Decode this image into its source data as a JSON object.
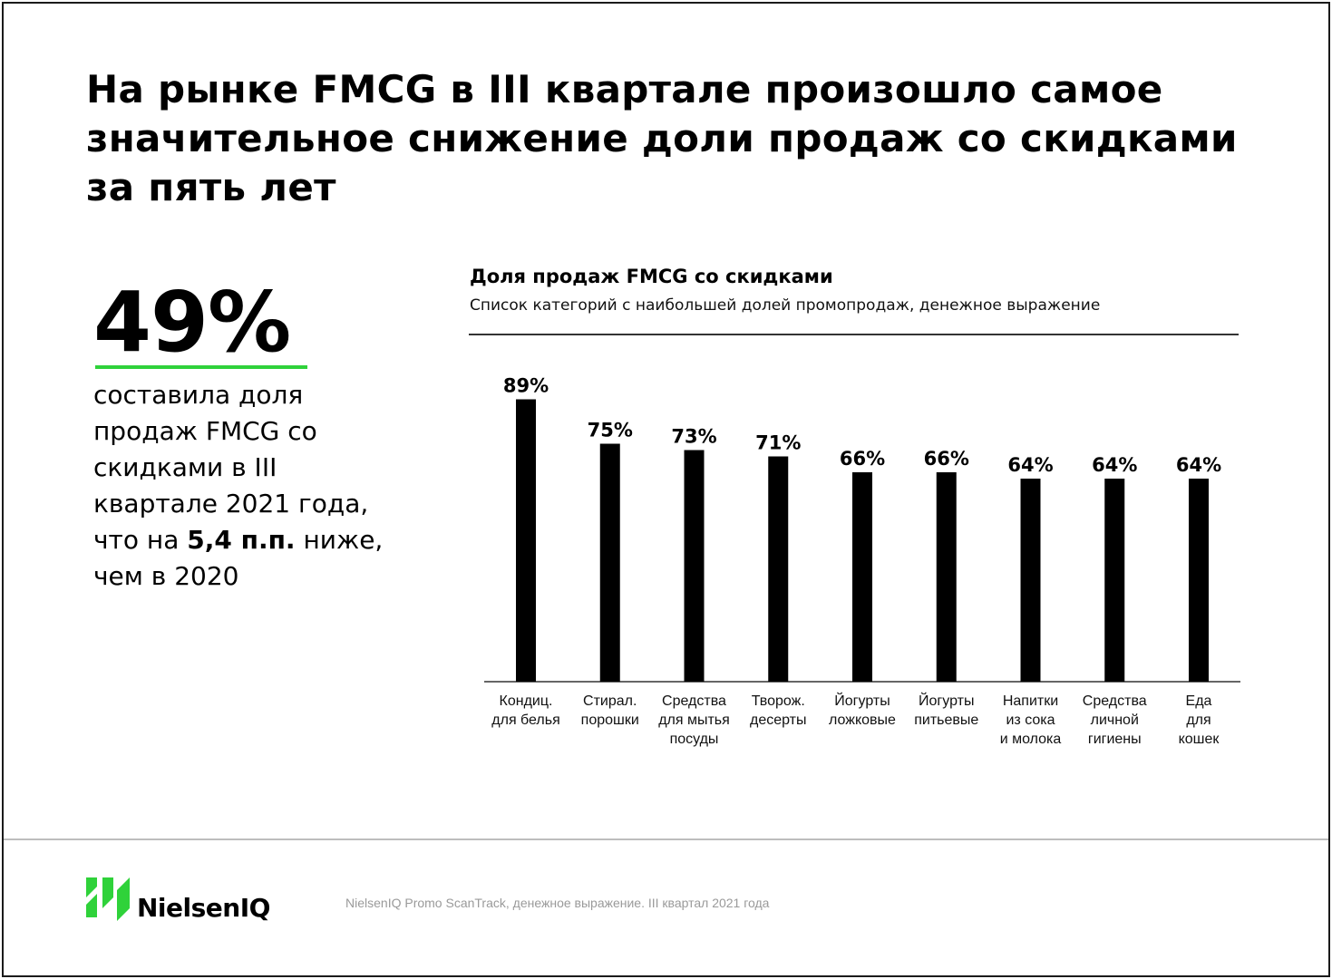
{
  "headline": {
    "lines": [
      "На рынке FMCG в III квартале произошло самое",
      "значительное снижение доли продаж со скидками",
      "за пять лет"
    ]
  },
  "stat": {
    "value": "49%",
    "desc_line1": "составила доля",
    "desc_line2": "продаж FMCG со",
    "desc_line3": "скидками в III",
    "desc_line4": "квартале 2021 года,",
    "desc_line5_pre": "что на ",
    "desc_line5_bold": "5,4 п.п.",
    "desc_line5_post": " ниже,",
    "desc_line6": "чем в 2020"
  },
  "chart_data": {
    "type": "bar",
    "title": "Доля продаж FMCG со скидками",
    "subtitle": "Список категорий с наибольшей долей промопродаж, денежное выражение",
    "categories": [
      [
        "Кондиц.",
        "для белья"
      ],
      [
        "Стирал.",
        "порошки"
      ],
      [
        "Средства",
        "для мытья",
        "посуды"
      ],
      [
        "Творож.",
        "десерты"
      ],
      [
        "Йогурты",
        "ложковые"
      ],
      [
        "Йогурты",
        "питьевые"
      ],
      [
        "Напитки",
        "из сока",
        "и молока"
      ],
      [
        "Средства",
        "личной",
        "гигиены"
      ],
      [
        "Еда",
        "для",
        "кошек"
      ]
    ],
    "values": [
      89,
      75,
      73,
      71,
      66,
      66,
      64,
      64,
      64
    ],
    "value_labels": [
      "89%",
      "75%",
      "73%",
      "71%",
      "66%",
      "66%",
      "64%",
      "64%",
      "64%"
    ],
    "ylim": [
      0,
      100
    ],
    "grid": false,
    "bar_color": "#000000"
  },
  "footer": {
    "logo_text": "NielsenIQ",
    "source": "NielsenIQ Promo ScanTrack, денежное выражение. III квартал 2021 года",
    "accent_color": "#2fd23a"
  }
}
